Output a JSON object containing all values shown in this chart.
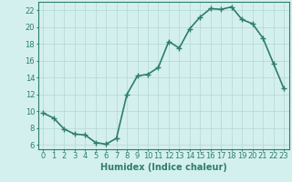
{
  "x": [
    0,
    1,
    2,
    3,
    4,
    5,
    6,
    7,
    8,
    9,
    10,
    11,
    12,
    13,
    14,
    15,
    16,
    17,
    18,
    19,
    20,
    21,
    22,
    23
  ],
  "y": [
    9.8,
    9.2,
    7.9,
    7.3,
    7.2,
    6.3,
    6.1,
    6.8,
    12.0,
    14.2,
    14.4,
    15.2,
    18.3,
    17.5,
    19.8,
    21.2,
    22.2,
    22.1,
    22.4,
    20.9,
    20.4,
    18.7,
    15.7,
    12.7
  ],
  "line_color": "#2e7d6e",
  "marker": "+",
  "markersize": 4,
  "linewidth": 1.2,
  "xlabel": "Humidex (Indice chaleur)",
  "xlabel_fontsize": 7,
  "ylabel_ticks": [
    6,
    8,
    10,
    12,
    14,
    16,
    18,
    20,
    22
  ],
  "ylim": [
    5.5,
    23.0
  ],
  "xlim": [
    -0.5,
    23.5
  ],
  "background_color": "#d4f0ee",
  "grid_color": "#b8dbd8",
  "tick_fontsize": 6
}
